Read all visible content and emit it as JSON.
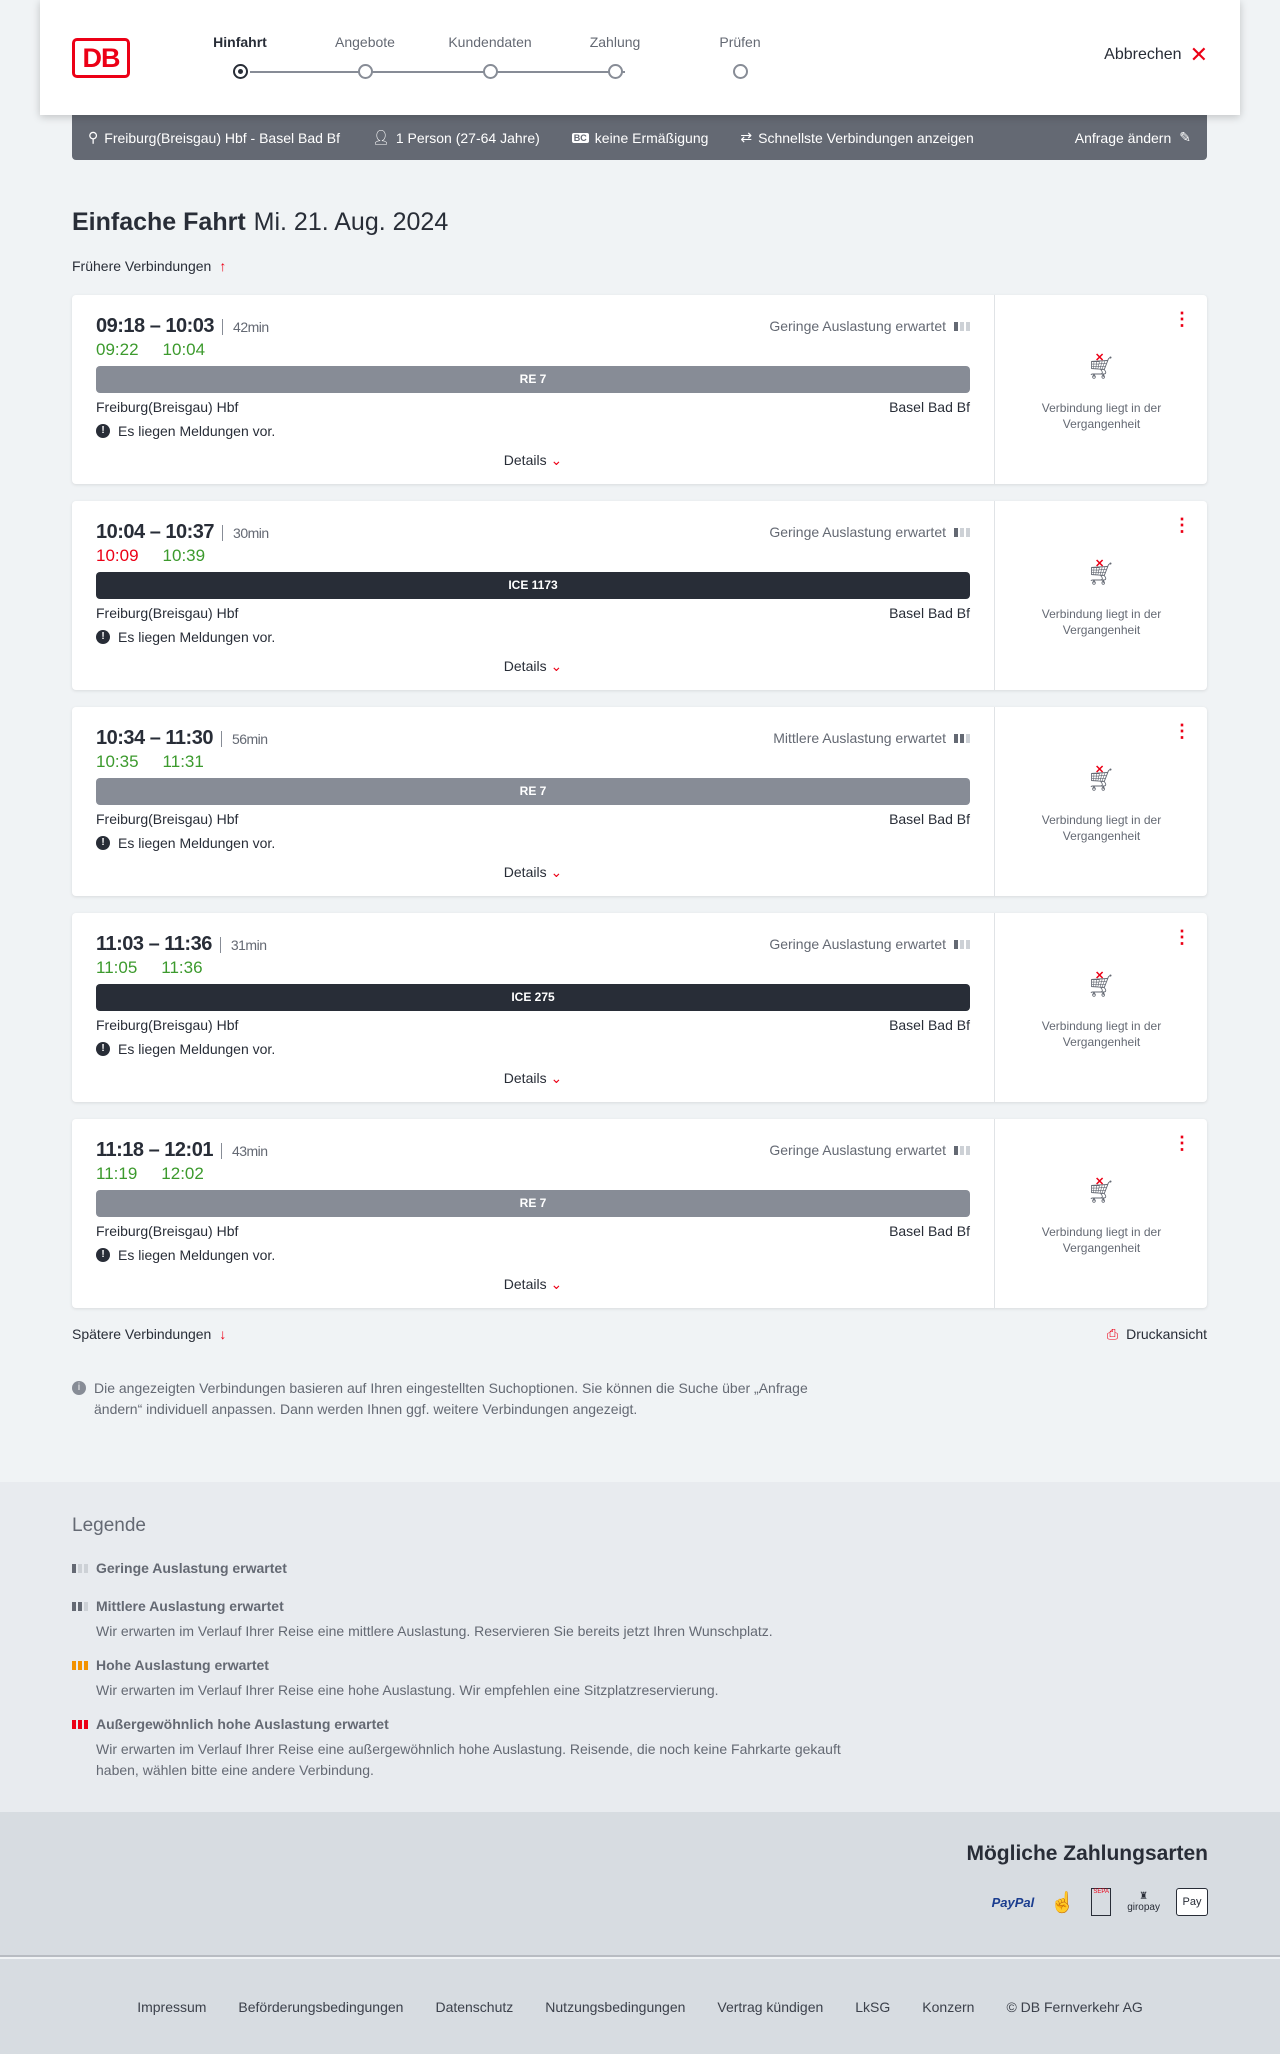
{
  "header": {
    "logo": "DB",
    "steps": [
      "Hinfahrt",
      "Angebote",
      "Kundendaten",
      "Zahlung",
      "Prüfen"
    ],
    "active_step": 0,
    "cancel_label": "Abbrechen"
  },
  "search": {
    "route": "Freiburg(Breisgau) Hbf - Basel Bad Bf",
    "passengers": "1 Person (27-64 Jahre)",
    "discount_badge": "BC",
    "discount": "keine Ermäßigung",
    "option": "Schnellste Verbindungen anzeigen",
    "edit_label": "Anfrage ändern"
  },
  "page": {
    "title": "Einfache Fahrt",
    "date": "Mi. 21. Aug. 2024",
    "earlier": "Frühere Verbindungen",
    "later": "Spätere Verbindungen",
    "print": "Druckansicht",
    "note": "Die angezeigten Verbindungen basieren auf Ihren eingestellten Suchoptionen. Sie können die Suche über „Anfrage ändern“ individuell anpassen. Dann werden Ihnen ggf. weitere Verbindungen angezeigt."
  },
  "colors": {
    "brand": "#ec0016",
    "on_time": "#3c9a2d",
    "regional_bar": "#878c96",
    "ice_bar": "#282d37"
  },
  "connections": [
    {
      "time": "09:18 – 10:03",
      "duration": "42min",
      "real_dep": "09:22",
      "real_arr": "10:04",
      "dep_delayed": false,
      "load": "Geringe Auslastung erwartet",
      "load_level": 1,
      "train": "RE 7",
      "type": "regional",
      "from": "Freiburg(Breisgau) Hbf",
      "to": "Basel Bad Bf",
      "message": "Es liegen Meldungen vor.",
      "details": "Details",
      "status": "Verbindung liegt in der Vergangenheit"
    },
    {
      "time": "10:04 – 10:37",
      "duration": "30min",
      "real_dep": "10:09",
      "real_arr": "10:39",
      "dep_delayed": true,
      "load": "Geringe Auslastung erwartet",
      "load_level": 1,
      "train": "ICE 1173",
      "type": "ice",
      "from": "Freiburg(Breisgau) Hbf",
      "to": "Basel Bad Bf",
      "message": "Es liegen Meldungen vor.",
      "details": "Details",
      "status": "Verbindung liegt in der Vergangenheit"
    },
    {
      "time": "10:34 – 11:30",
      "duration": "56min",
      "real_dep": "10:35",
      "real_arr": "11:31",
      "dep_delayed": false,
      "load": "Mittlere Auslastung erwartet",
      "load_level": 2,
      "train": "RE 7",
      "type": "regional",
      "from": "Freiburg(Breisgau) Hbf",
      "to": "Basel Bad Bf",
      "message": "Es liegen Meldungen vor.",
      "details": "Details",
      "status": "Verbindung liegt in der Vergangenheit"
    },
    {
      "time": "11:03 – 11:36",
      "duration": "31min",
      "real_dep": "11:05",
      "real_arr": "11:36",
      "dep_delayed": false,
      "load": "Geringe Auslastung erwartet",
      "load_level": 1,
      "train": "ICE 275",
      "type": "ice",
      "from": "Freiburg(Breisgau) Hbf",
      "to": "Basel Bad Bf",
      "message": "Es liegen Meldungen vor.",
      "details": "Details",
      "status": "Verbindung liegt in der Vergangenheit"
    },
    {
      "time": "11:18 – 12:01",
      "duration": "43min",
      "real_dep": "11:19",
      "real_arr": "12:02",
      "dep_delayed": false,
      "load": "Geringe Auslastung erwartet",
      "load_level": 1,
      "train": "RE 7",
      "type": "regional",
      "from": "Freiburg(Breisgau) Hbf",
      "to": "Basel Bad Bf",
      "message": "Es liegen Meldungen vor.",
      "details": "Details",
      "status": "Verbindung liegt in der Vergangenheit"
    }
  ],
  "legend": {
    "title": "Legende",
    "items": [
      {
        "title": "Geringe Auslastung erwartet",
        "text": "",
        "color": "#646973"
      },
      {
        "title": "Mittlere Auslastung erwartet",
        "text": "Wir erwarten im Verlauf Ihrer Reise eine mittlere Auslastung. Reservieren Sie bereits jetzt Ihren Wunschplatz.",
        "color": "#646973"
      },
      {
        "title": "Hohe Auslastung erwartet",
        "text": "Wir erwarten im Verlauf Ihrer Reise eine hohe Auslastung. Wir empfehlen eine Sitzplatzreservierung.",
        "color": "#f39200"
      },
      {
        "title": "Außergewöhnlich hohe Auslastung erwartet",
        "text": "Wir erwarten im Verlauf Ihrer Reise eine außergewöhnlich hohe Auslastung. Reisende, die noch keine Fahrkarte gekauft haben, wählen bitte eine andere Verbindung.",
        "color": "#ec0016"
      }
    ]
  },
  "payment": {
    "title": "Mögliche Zahlungsarten",
    "methods": [
      "PayPal",
      "SEPA",
      "giropay",
      "Pay"
    ]
  },
  "footer": {
    "links": [
      "Impressum",
      "Beförderungsbedingungen",
      "Datenschutz",
      "Nutzungsbedingungen",
      "Vertrag kündigen",
      "LkSG",
      "Konzern",
      "© DB Fernverkehr AG"
    ]
  }
}
